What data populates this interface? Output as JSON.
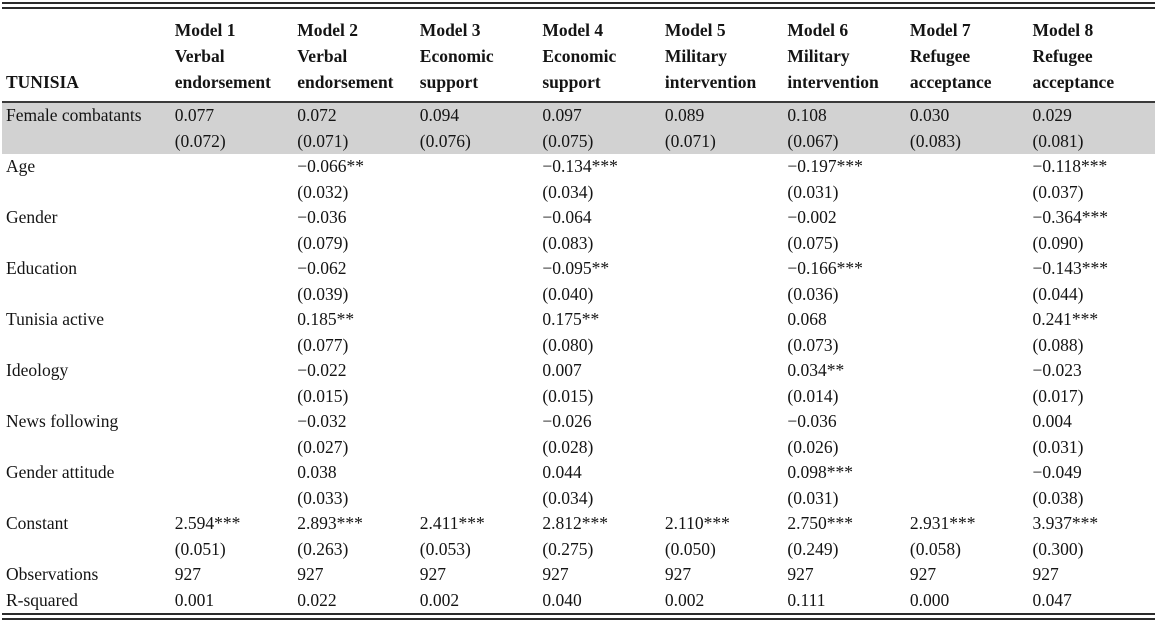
{
  "table": {
    "row_label_header": "TUNISIA",
    "columns": [
      {
        "model": "Model 1",
        "dv": "Verbal endorsement"
      },
      {
        "model": "Model 2",
        "dv": "Verbal endorsement"
      },
      {
        "model": "Model 3",
        "dv": "Economic support"
      },
      {
        "model": "Model 4",
        "dv": "Economic support"
      },
      {
        "model": "Model 5",
        "dv": "Military intervention"
      },
      {
        "model": "Model 6",
        "dv": "Military intervention"
      },
      {
        "model": "Model 7",
        "dv": "Refugee acceptance"
      },
      {
        "model": "Model 8",
        "dv": "Refugee acceptance"
      }
    ],
    "rows": [
      {
        "label": "Female combatants",
        "highlight": true,
        "coefs": [
          "0.077",
          "0.072",
          "0.094",
          "0.097",
          "0.089",
          "0.108",
          "0.030",
          "0.029"
        ],
        "ses": [
          "(0.072)",
          "(0.071)",
          "(0.076)",
          "(0.075)",
          "(0.071)",
          "(0.067)",
          "(0.083)",
          "(0.081)"
        ]
      },
      {
        "label": "Age",
        "highlight": false,
        "coefs": [
          "",
          "−0.066**",
          "",
          "−0.134***",
          "",
          "−0.197***",
          "",
          "−0.118***"
        ],
        "ses": [
          "",
          "(0.032)",
          "",
          "(0.034)",
          "",
          "(0.031)",
          "",
          "(0.037)"
        ]
      },
      {
        "label": "Gender",
        "highlight": false,
        "coefs": [
          "",
          "−0.036",
          "",
          "−0.064",
          "",
          "−0.002",
          "",
          "−0.364***"
        ],
        "ses": [
          "",
          "(0.079)",
          "",
          "(0.083)",
          "",
          "(0.075)",
          "",
          "(0.090)"
        ]
      },
      {
        "label": "Education",
        "highlight": false,
        "coefs": [
          "",
          "−0.062",
          "",
          "−0.095**",
          "",
          "−0.166***",
          "",
          "−0.143***"
        ],
        "ses": [
          "",
          "(0.039)",
          "",
          "(0.040)",
          "",
          "(0.036)",
          "",
          "(0.044)"
        ]
      },
      {
        "label": "Tunisia active",
        "highlight": false,
        "coefs": [
          "",
          "0.185**",
          "",
          "0.175**",
          "",
          "0.068",
          "",
          "0.241***"
        ],
        "ses": [
          "",
          "(0.077)",
          "",
          "(0.080)",
          "",
          "(0.073)",
          "",
          "(0.088)"
        ]
      },
      {
        "label": "Ideology",
        "highlight": false,
        "coefs": [
          "",
          "−0.022",
          "",
          "0.007",
          "",
          "0.034**",
          "",
          "−0.023"
        ],
        "ses": [
          "",
          "(0.015)",
          "",
          "(0.015)",
          "",
          "(0.014)",
          "",
          "(0.017)"
        ]
      },
      {
        "label": "News following",
        "highlight": false,
        "coefs": [
          "",
          "−0.032",
          "",
          "−0.026",
          "",
          "−0.036",
          "",
          "0.004"
        ],
        "ses": [
          "",
          "(0.027)",
          "",
          "(0.028)",
          "",
          "(0.026)",
          "",
          "(0.031)"
        ]
      },
      {
        "label": "Gender attitude",
        "highlight": false,
        "coefs": [
          "",
          "0.038",
          "",
          "0.044",
          "",
          "0.098***",
          "",
          "−0.049"
        ],
        "ses": [
          "",
          "(0.033)",
          "",
          "(0.034)",
          "",
          "(0.031)",
          "",
          "(0.038)"
        ]
      },
      {
        "label": "Constant",
        "highlight": false,
        "coefs": [
          "2.594***",
          "2.893***",
          "2.411***",
          "2.812***",
          "2.110***",
          "2.750***",
          "2.931***",
          "3.937***"
        ],
        "ses": [
          "(0.051)",
          "(0.263)",
          "(0.053)",
          "(0.275)",
          "(0.050)",
          "(0.249)",
          "(0.058)",
          "(0.300)"
        ]
      }
    ],
    "stats_rows": [
      {
        "label": "Observations",
        "values": [
          "927",
          "927",
          "927",
          "927",
          "927",
          "927",
          "927",
          "927"
        ]
      },
      {
        "label": "R-squared",
        "values": [
          "0.001",
          "0.022",
          "0.002",
          "0.040",
          "0.002",
          "0.111",
          "0.000",
          "0.047"
        ]
      }
    ],
    "colors": {
      "highlight_row_bg": "#d2d2d2",
      "rule": "#2b2b2b",
      "text": "#141414"
    }
  }
}
